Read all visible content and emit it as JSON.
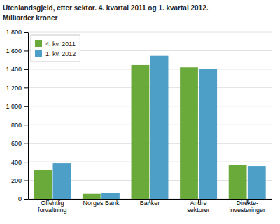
{
  "chart_data": {
    "type": "bar",
    "title": "Utenlandsgjeld, etter sektor. 4. kvartal 2011 og 1. kvartal 2012.",
    "subtitle": "Milliarder kroner",
    "categories": [
      "Offentlig\nforvaltning",
      "Norges Bank",
      "Banker",
      "Andre\nsektorer",
      "Direkte-\ninvesteringer"
    ],
    "series": [
      {
        "name": "4. kv. 2011",
        "color": "#6aaa3a",
        "values": [
          310,
          55,
          1445,
          1420,
          370
        ]
      },
      {
        "name": "1. kv. 2012",
        "color": "#4d9fc8",
        "values": [
          385,
          65,
          1545,
          1400,
          355
        ]
      }
    ],
    "ylim": [
      0,
      1800
    ],
    "yticks": [
      0,
      200,
      400,
      600,
      800,
      {
        "value": 1000,
        "label": "1 000"
      },
      {
        "value": 1200,
        "label": "1 200"
      },
      {
        "value": 1400,
        "label": "1 400"
      },
      {
        "value": 1600,
        "label": "1 600"
      },
      {
        "value": 1800,
        "label": "1 800"
      }
    ],
    "grid": true,
    "legend": "upper left"
  }
}
